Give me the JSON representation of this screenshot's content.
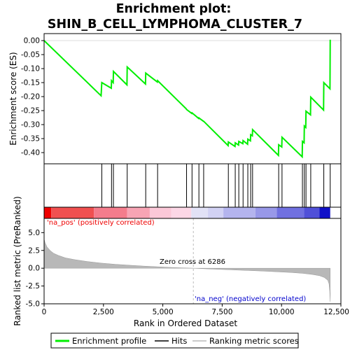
{
  "chart_data": {
    "type": "line",
    "title_line1": "Enrichment plot:",
    "title_line2": "SHIN_B_CELL_LYMPHOMA_CLUSTER_7",
    "xlabel": "Rank in Ordered Dataset",
    "ylabel_top": "Enrichment score (ES)",
    "ylabel_bottom": "Ranked list metric (PreRanked)",
    "xlim": [
      0,
      12500
    ],
    "es_ylim": [
      -0.44,
      0.025
    ],
    "metric_ylim": [
      -5.0,
      7.0
    ],
    "x_ticks": [
      0,
      2500,
      5000,
      7500,
      10000,
      12500
    ],
    "x_tick_labels": [
      "0",
      "2,500",
      "5,000",
      "7,500",
      "10,000",
      "12,500"
    ],
    "es_ticks": [
      0.0,
      -0.05,
      -0.1,
      -0.15,
      -0.2,
      -0.25,
      -0.3,
      -0.35,
      -0.4
    ],
    "es_tick_labels": [
      "0.00",
      "-0.05",
      "-0.10",
      "-0.15",
      "-0.20",
      "-0.25",
      "-0.30",
      "-0.35",
      "-0.40"
    ],
    "metric_ticks": [
      5.0,
      2.5,
      0.0,
      -2.5,
      -5.0
    ],
    "metric_tick_labels": [
      "5.0",
      "2.5",
      "0.0",
      "-2.5",
      "-5.0"
    ],
    "n_genes": 12050,
    "zero_cross_rank": 6286,
    "zero_cross_label": "Zero cross at 6286",
    "pos_label": "'na_pos' (positively correlated)",
    "neg_label": "'na_neg' (negatively correlated)",
    "hits": [
      2430,
      2840,
      2920,
      3500,
      4280,
      4780,
      6000,
      6230,
      6520,
      6720,
      7760,
      8050,
      8200,
      8380,
      8580,
      8700,
      8780,
      9880,
      10020,
      10880,
      10960,
      11030,
      11230,
      11780,
      12050
    ],
    "es_curve": [
      [
        0,
        0.0
      ],
      [
        2400,
        -0.197
      ],
      [
        2430,
        -0.15
      ],
      [
        2830,
        -0.17
      ],
      [
        2840,
        -0.143
      ],
      [
        2910,
        -0.15
      ],
      [
        2920,
        -0.11
      ],
      [
        3490,
        -0.158
      ],
      [
        3500,
        -0.094
      ],
      [
        4270,
        -0.155
      ],
      [
        4280,
        -0.116
      ],
      [
        4770,
        -0.148
      ],
      [
        4780,
        -0.143
      ],
      [
        5990,
        -0.244
      ],
      [
        6000,
        -0.246
      ],
      [
        6220,
        -0.26
      ],
      [
        6230,
        -0.258
      ],
      [
        6510,
        -0.278
      ],
      [
        6520,
        -0.276
      ],
      [
        6710,
        -0.288
      ],
      [
        6720,
        -0.288
      ],
      [
        7750,
        -0.375
      ],
      [
        7760,
        -0.362
      ],
      [
        8040,
        -0.378
      ],
      [
        8050,
        -0.365
      ],
      [
        8190,
        -0.373
      ],
      [
        8200,
        -0.36
      ],
      [
        8370,
        -0.368
      ],
      [
        8380,
        -0.357
      ],
      [
        8570,
        -0.37
      ],
      [
        8580,
        -0.352
      ],
      [
        8690,
        -0.358
      ],
      [
        8700,
        -0.336
      ],
      [
        8770,
        -0.34
      ],
      [
        8780,
        -0.318
      ],
      [
        9870,
        -0.41
      ],
      [
        9880,
        -0.372
      ],
      [
        10010,
        -0.38
      ],
      [
        10020,
        -0.345
      ],
      [
        10870,
        -0.415
      ],
      [
        10880,
        -0.36
      ],
      [
        10950,
        -0.365
      ],
      [
        10960,
        -0.305
      ],
      [
        11020,
        -0.31
      ],
      [
        11030,
        -0.252
      ],
      [
        11220,
        -0.265
      ],
      [
        11230,
        -0.202
      ],
      [
        11770,
        -0.248
      ],
      [
        11780,
        -0.15
      ],
      [
        12040,
        -0.172
      ],
      [
        12050,
        0.003
      ]
    ],
    "metric_curve": [
      [
        0,
        4.1
      ],
      [
        40,
        3.6
      ],
      [
        120,
        3.0
      ],
      [
        250,
        2.5
      ],
      [
        400,
        2.1
      ],
      [
        600,
        1.8
      ],
      [
        900,
        1.45
      ],
      [
        1300,
        1.2
      ],
      [
        1800,
        0.95
      ],
      [
        2400,
        0.72
      ],
      [
        3000,
        0.55
      ],
      [
        3600,
        0.42
      ],
      [
        4200,
        0.3
      ],
      [
        4800,
        0.2
      ],
      [
        5400,
        0.1
      ],
      [
        6000,
        0.03
      ],
      [
        6286,
        0.0
      ],
      [
        6800,
        -0.08
      ],
      [
        7400,
        -0.16
      ],
      [
        8000,
        -0.24
      ],
      [
        8600,
        -0.32
      ],
      [
        9200,
        -0.4
      ],
      [
        9800,
        -0.5
      ],
      [
        10400,
        -0.6
      ],
      [
        10900,
        -0.72
      ],
      [
        11300,
        -0.88
      ],
      [
        11600,
        -1.05
      ],
      [
        11800,
        -1.3
      ],
      [
        11950,
        -1.7
      ],
      [
        12000,
        -2.2
      ],
      [
        12030,
        -3.2
      ],
      [
        12050,
        -4.7
      ]
    ],
    "heatmap_bands": [
      {
        "from": 0,
        "to": 300,
        "color": "#ee0000"
      },
      {
        "from": 300,
        "to": 2100,
        "color": "#f05050"
      },
      {
        "from": 2100,
        "to": 3500,
        "color": "#f47c8c"
      },
      {
        "from": 3500,
        "to": 4450,
        "color": "#f7a4b4"
      },
      {
        "from": 4450,
        "to": 5350,
        "color": "#fbc8d8"
      },
      {
        "from": 5350,
        "to": 6200,
        "color": "#fcd7e6"
      },
      {
        "from": 6200,
        "to": 6900,
        "color": "#e2e2f6"
      },
      {
        "from": 6900,
        "to": 7550,
        "color": "#d2d2f4"
      },
      {
        "from": 7550,
        "to": 8900,
        "color": "#b4b4ee"
      },
      {
        "from": 8900,
        "to": 9800,
        "color": "#9898e8"
      },
      {
        "from": 9800,
        "to": 10950,
        "color": "#7070e0"
      },
      {
        "from": 10950,
        "to": 11600,
        "color": "#5050d8"
      },
      {
        "from": 11600,
        "to": 12050,
        "color": "#1010c8"
      }
    ],
    "colors": {
      "es_line": "#00ee00",
      "hit": "#000000",
      "metric_fill": "#b8b8b8",
      "zero_line": "#bbbbbb",
      "pos_text": "#ee0000",
      "neg_text": "#0000cc"
    },
    "legend": {
      "items": [
        {
          "label": "Enrichment profile",
          "kind": "es"
        },
        {
          "label": "Hits",
          "kind": "hit"
        },
        {
          "label": "Ranking metric scores",
          "kind": "metric"
        }
      ]
    }
  }
}
